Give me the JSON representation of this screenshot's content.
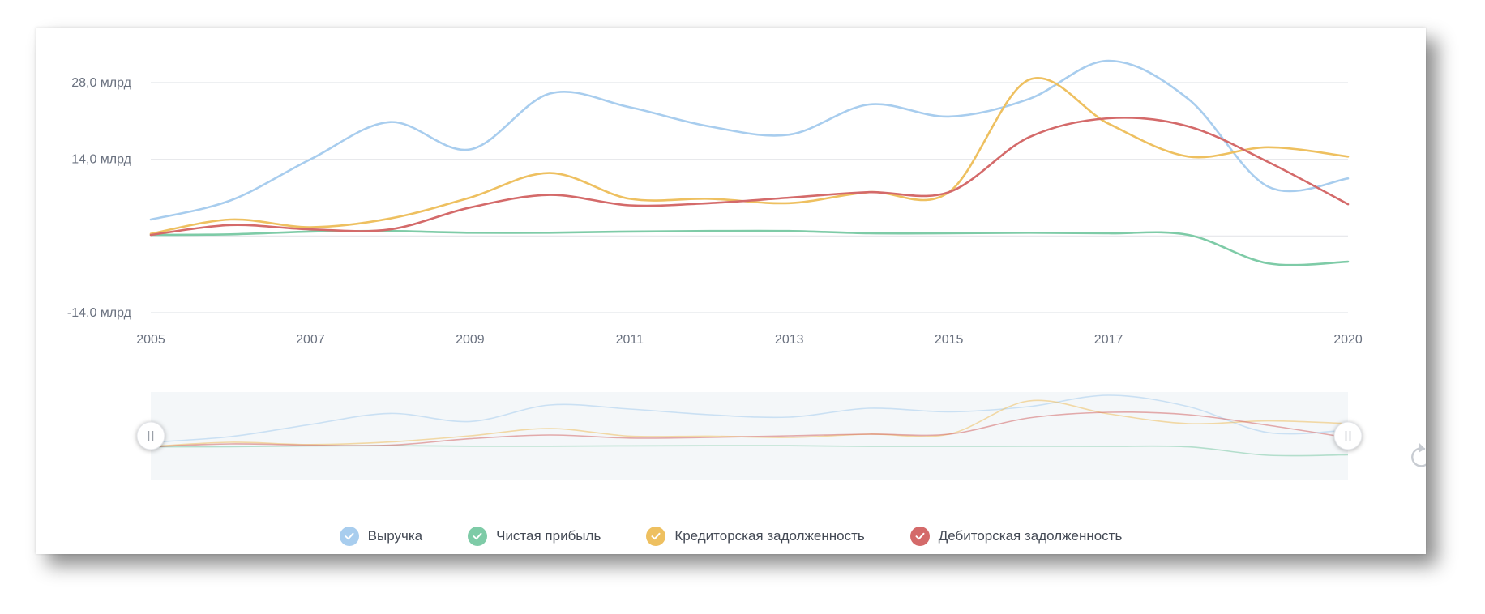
{
  "chart_data": {
    "type": "line",
    "smooth": true,
    "x": [
      2005,
      2006,
      2007,
      2008,
      2009,
      2010,
      2011,
      2012,
      2013,
      2014,
      2015,
      2016,
      2017,
      2018,
      2019,
      2020
    ],
    "x_ticks": [
      "2005",
      "2007",
      "2009",
      "2011",
      "2013",
      "2015",
      "2017",
      "2020"
    ],
    "y_ticks": [
      {
        "value": 28,
        "label": "28,0 млрд"
      },
      {
        "value": 14,
        "label": "14,0 млрд"
      },
      {
        "value": 0,
        "label": ""
      },
      {
        "value": -14,
        "label": "-14,0 млрд"
      }
    ],
    "ylim": [
      -14,
      28
    ],
    "grid": true,
    "legend_position": "bottom",
    "series": [
      {
        "name": "Выручка",
        "color": "#a8cdee",
        "values": [
          3.0,
          6.5,
          14.0,
          20.8,
          15.8,
          26.0,
          23.5,
          20.0,
          18.5,
          24.0,
          21.8,
          25.0,
          32.0,
          25.0,
          9.0,
          10.5
        ]
      },
      {
        "name": "Чистая прибыль",
        "color": "#7ecba7",
        "values": [
          0.2,
          0.3,
          0.8,
          0.9,
          0.6,
          0.6,
          0.8,
          0.9,
          0.9,
          0.5,
          0.5,
          0.6,
          0.5,
          0.2,
          -5.0,
          -4.7
        ]
      },
      {
        "name": "Кредиторская задолженность",
        "color": "#eec060",
        "values": [
          0.4,
          3.0,
          1.6,
          3.2,
          7.0,
          11.5,
          6.8,
          6.8,
          6.0,
          8.0,
          8.0,
          28.5,
          20.5,
          14.5,
          16.2,
          14.5
        ]
      },
      {
        "name": "Дебиторская задолженность",
        "color": "#d46a6a",
        "values": [
          0.2,
          2.0,
          1.2,
          1.2,
          5.2,
          7.5,
          5.6,
          6.0,
          7.0,
          8.0,
          8.0,
          18.0,
          21.5,
          20.0,
          13.5,
          5.8
        ]
      }
    ]
  },
  "icons": {
    "legend_check": "checkmark-icon",
    "reset": "reset-icon",
    "handle": "drag-handle-icon"
  }
}
